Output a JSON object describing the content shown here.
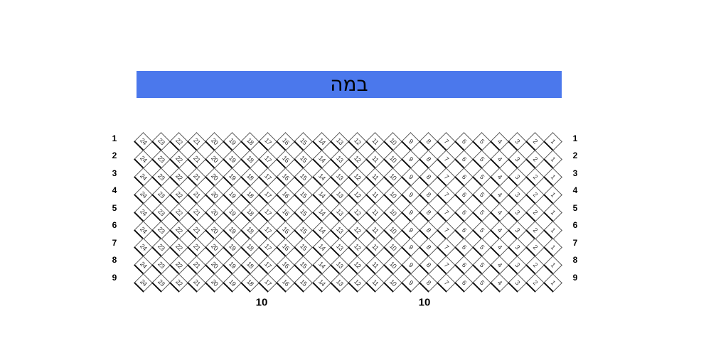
{
  "stage": {
    "label": "במה"
  },
  "colors": {
    "stage_bg": "#4b78ec",
    "seat_border": "#555555",
    "seat_border_heavy": "#111111",
    "seat_number": "#333333",
    "label_color": "#000000"
  },
  "seating": {
    "rows": [
      {
        "label": "1",
        "seats": [
          24,
          23,
          22,
          21,
          20,
          19,
          18,
          17,
          16,
          15,
          14,
          13,
          12,
          11,
          10,
          9,
          8,
          7,
          6,
          5,
          4,
          3,
          2,
          1
        ]
      },
      {
        "label": "2",
        "seats": [
          24,
          23,
          22,
          21,
          20,
          19,
          18,
          17,
          16,
          15,
          14,
          13,
          12,
          11,
          10,
          9,
          8,
          7,
          6,
          5,
          4,
          3,
          2,
          1
        ]
      },
      {
        "label": "3",
        "seats": [
          24,
          23,
          22,
          21,
          20,
          19,
          18,
          17,
          16,
          15,
          14,
          13,
          12,
          11,
          10,
          9,
          8,
          7,
          6,
          5,
          4,
          3,
          2,
          1
        ]
      },
      {
        "label": "4",
        "seats": [
          24,
          23,
          22,
          21,
          20,
          19,
          18,
          17,
          16,
          15,
          14,
          13,
          12,
          11,
          10,
          9,
          8,
          7,
          6,
          5,
          4,
          3,
          2,
          1
        ]
      },
      {
        "label": "5",
        "seats": [
          24,
          23,
          22,
          21,
          20,
          19,
          18,
          17,
          16,
          15,
          14,
          13,
          12,
          11,
          10,
          9,
          8,
          7,
          6,
          5,
          4,
          3,
          2,
          1
        ]
      },
      {
        "label": "6",
        "seats": [
          24,
          23,
          22,
          21,
          20,
          19,
          18,
          17,
          16,
          15,
          14,
          13,
          12,
          11,
          10,
          9,
          8,
          7,
          6,
          5,
          4,
          3,
          2,
          1
        ]
      },
      {
        "label": "7",
        "seats": [
          24,
          23,
          22,
          21,
          20,
          19,
          18,
          17,
          16,
          15,
          14,
          13,
          12,
          11,
          10,
          9,
          8,
          7,
          6,
          5,
          4,
          3,
          2,
          1
        ]
      },
      {
        "label": "8",
        "seats": [
          24,
          23,
          22,
          21,
          20,
          19,
          18,
          17,
          16,
          15,
          14,
          13,
          12,
          11,
          10,
          9,
          8,
          7,
          6,
          5,
          4,
          3,
          2,
          1
        ]
      },
      {
        "label": "9",
        "seats": [
          24,
          23,
          22,
          21,
          20,
          19,
          18,
          17,
          16,
          15,
          14,
          13,
          12,
          11,
          10,
          9,
          8,
          7,
          6,
          5,
          4,
          3,
          2,
          1
        ]
      }
    ]
  },
  "bottom_labels": [
    "10",
    "10"
  ]
}
